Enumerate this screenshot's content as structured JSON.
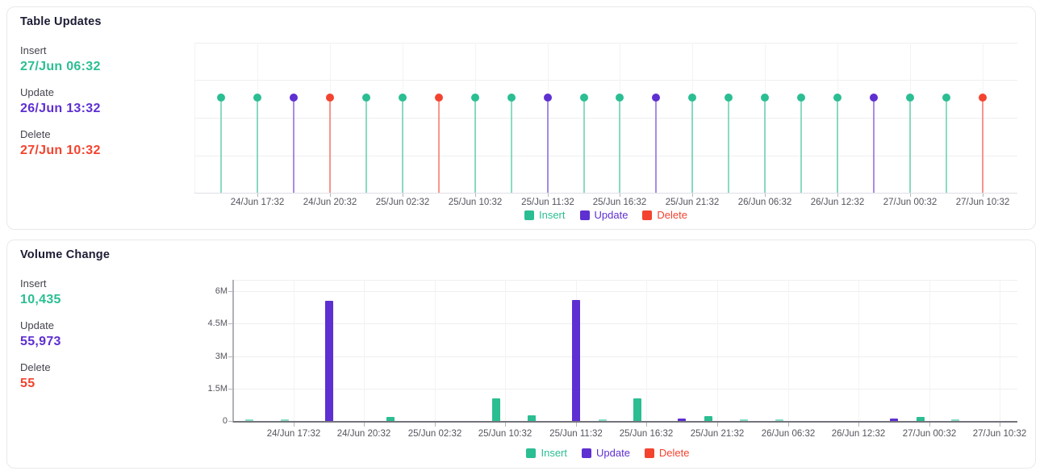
{
  "colors": {
    "insert": "#2bbe92",
    "update": "#5e2fd1",
    "delete": "#f3432f",
    "insert_light": "#86dcc2",
    "update_light": "#a487e8",
    "delete_light": "#f8988c"
  },
  "cards": [
    {
      "title": "Table Updates",
      "stats": [
        {
          "label": "Insert",
          "value": "27/Jun 06:32",
          "series": "insert"
        },
        {
          "label": "Update",
          "value": "26/Jun 13:32",
          "series": "update"
        },
        {
          "label": "Delete",
          "value": "27/Jun 10:32",
          "series": "delete"
        }
      ]
    },
    {
      "title": "Volume Change",
      "stats": [
        {
          "label": "Insert",
          "value": "10,435",
          "series": "insert"
        },
        {
          "label": "Update",
          "value": "55,973",
          "series": "update"
        },
        {
          "label": "Delete",
          "value": "55",
          "series": "delete"
        }
      ]
    }
  ],
  "legend": [
    {
      "label": "Insert",
      "series": "insert"
    },
    {
      "label": "Update",
      "series": "update"
    },
    {
      "label": "Delete",
      "series": "delete"
    }
  ],
  "chart_data": [
    {
      "type": "scatter",
      "title": "Table Updates",
      "subtype": "event-lollipop-timeline",
      "slots": 22,
      "tick_labels": [
        "24/Jun 17:32",
        "24/Jun 20:32",
        "25/Jun 02:32",
        "25/Jun 10:32",
        "25/Jun 11:32",
        "25/Jun 16:32",
        "25/Jun 21:32",
        "26/Jun 06:32",
        "26/Jun 12:32",
        "27/Jun 00:32",
        "27/Jun 10:32"
      ],
      "tick_slot_indices": [
        1,
        3,
        5,
        7,
        9,
        11,
        13,
        15,
        17,
        19,
        21
      ],
      "events_by_slot": [
        "insert",
        "insert",
        "update",
        "delete",
        "insert",
        "insert",
        "delete",
        "insert",
        "insert",
        "update",
        "insert",
        "insert",
        "update",
        "insert",
        "insert",
        "insert",
        "insert",
        "insert",
        "update",
        "insert",
        "insert",
        "delete"
      ],
      "legend": [
        "Insert",
        "Update",
        "Delete"
      ],
      "grid": true,
      "legend_position": "bottom-center"
    },
    {
      "type": "bar",
      "title": "Volume Change",
      "subtype": "grouped-bars",
      "slots": 22,
      "tick_labels": [
        "24/Jun 17:32",
        "24/Jun 20:32",
        "25/Jun 02:32",
        "25/Jun 10:32",
        "25/Jun 11:32",
        "25/Jun 16:32",
        "25/Jun 21:32",
        "26/Jun 06:32",
        "26/Jun 12:32",
        "27/Jun 00:32",
        "27/Jun 10:32"
      ],
      "tick_slot_indices": [
        1,
        3,
        5,
        7,
        9,
        11,
        13,
        15,
        17,
        19,
        21
      ],
      "ylabel_ticks": [
        "0",
        "1.5M",
        "3M",
        "4.5M",
        "6M"
      ],
      "ylim_millions": [
        0,
        6.5
      ],
      "series": [
        {
          "name": "Insert",
          "values_millions": [
            0.07,
            0.07,
            0,
            0,
            0.19,
            0,
            0,
            1.05,
            0.26,
            0,
            0.07,
            1.05,
            0,
            0.22,
            0.07,
            0.04,
            0,
            0,
            0,
            0.19,
            0.07,
            0
          ]
        },
        {
          "name": "Update",
          "values_millions": [
            0,
            0,
            5.55,
            0,
            0,
            0,
            0,
            0,
            0,
            5.6,
            0,
            0,
            0.12,
            0,
            0,
            0,
            0,
            0,
            0.12,
            0,
            0,
            0
          ]
        },
        {
          "name": "Delete",
          "values_millions": [
            0,
            0,
            0,
            0,
            0,
            0,
            0,
            0,
            0,
            0,
            0,
            0,
            0,
            0,
            0,
            0,
            0,
            0,
            0,
            0,
            0,
            0
          ]
        }
      ],
      "legend": [
        "Insert",
        "Update",
        "Delete"
      ],
      "grid": true,
      "legend_position": "bottom-center"
    }
  ]
}
